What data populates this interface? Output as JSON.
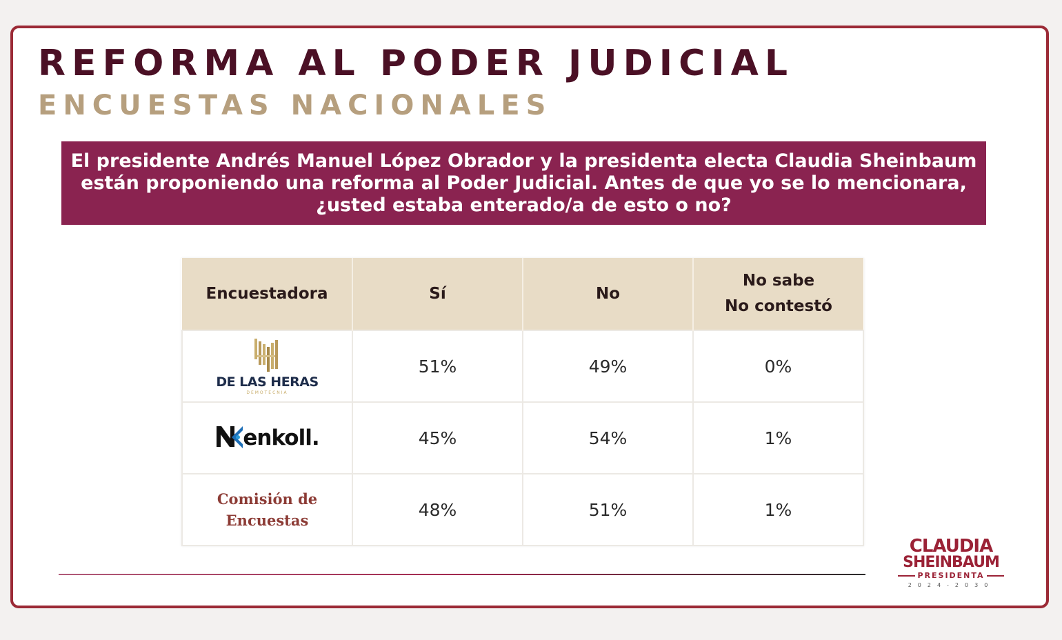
{
  "header": {
    "title": "REFORMA AL PODER JUDICIAL",
    "subtitle": "ENCUESTAS NACIONALES"
  },
  "question": "El presidente Andrés Manuel López Obrador y la presidenta electa Claudia Sheinbaum están proponiendo una reforma al Poder Judicial. Antes de que yo se lo mencionara, ¿usted estaba enterado/a de esto o no?",
  "table": {
    "headers": {
      "pollster": "Encuestadora",
      "yes": "Sí",
      "no": "No",
      "dk_line1": "No sabe",
      "dk_line2": "No contestó"
    },
    "rows": [
      {
        "pollster_name": "DE LAS HERAS",
        "pollster_tagline": "DEMOTECNIA",
        "yes": "51%",
        "no": "49%",
        "dk": "0%"
      },
      {
        "pollster_name": "enkoll.",
        "yes": "45%",
        "no": "54%",
        "dk": "1%"
      },
      {
        "pollster_line1": "Comisión de",
        "pollster_line2": "Encuestas",
        "yes": "48%",
        "no": "51%",
        "dk": "1%"
      }
    ]
  },
  "brand": {
    "line1": "CLAUDIA",
    "line2": "SHEINBAUM",
    "line3": "PRESIDENTA",
    "line4": "2024-2030"
  },
  "colors": {
    "title": "#4b1025",
    "subtitle": "#b69f7e",
    "question_bg": "#8a2350",
    "table_header_bg": "#e8dcc6",
    "frame": "#9b2a36",
    "brand": "#9b2236"
  }
}
